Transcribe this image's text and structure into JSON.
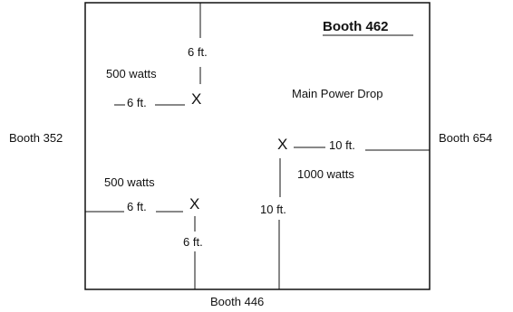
{
  "booth": {
    "title": "Booth 462",
    "left": "Booth 352",
    "right": "Booth 654",
    "bottom": "Booth 446"
  },
  "main_power_label": "Main Power Drop",
  "drop_marker": "X",
  "drops": {
    "top_left": {
      "watts": "500 watts",
      "vertical_distance": "6 ft.",
      "horizontal_distance": "6 ft."
    },
    "bottom_left": {
      "watts": "500 watts",
      "vertical_distance": "6 ft.",
      "horizontal_distance": "6 ft."
    },
    "right": {
      "watts": "1000 watts",
      "vertical_distance": "10 ft.",
      "horizontal_distance": "10 ft."
    }
  }
}
